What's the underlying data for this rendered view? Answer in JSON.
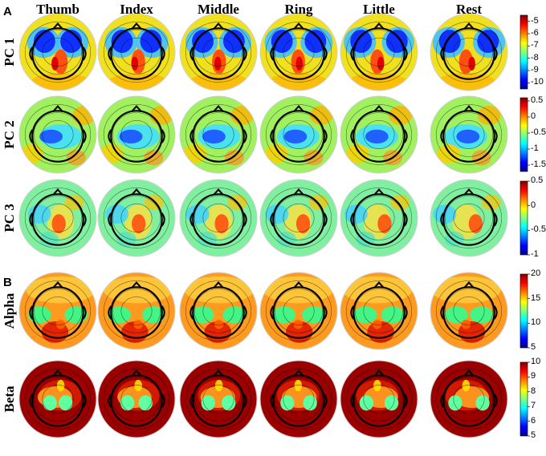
{
  "panels": [
    {
      "letter": "A"
    },
    {
      "letter": "B"
    }
  ],
  "columns": [
    "Thumb",
    "Index",
    "Middle",
    "Ring",
    "Little",
    "Rest"
  ],
  "rows": [
    {
      "label": "PC 1",
      "style": "pc1",
      "colorbar": {
        "min": -10.5,
        "max": -4.5,
        "ticks": [
          "-5",
          "-6",
          "-7",
          "-8",
          "-9",
          "-10"
        ],
        "tick_values": [
          -5,
          -6,
          -7,
          -8,
          -9,
          -10
        ]
      }
    },
    {
      "label": "PC 2",
      "style": "pc2",
      "colorbar": {
        "min": -1.7,
        "max": 0.6,
        "ticks": [
          "0.5",
          "0",
          "-0.5",
          "-1",
          "-1.5"
        ],
        "tick_values": [
          0.5,
          0,
          -0.5,
          -1,
          -1.5
        ]
      }
    },
    {
      "label": "PC 3",
      "style": "pc3",
      "colorbar": {
        "min": -1.0,
        "max": 0.5,
        "ticks": [
          "0.5",
          "0",
          "-0.5",
          "-1"
        ],
        "tick_values": [
          0.5,
          0,
          -0.5,
          -1
        ]
      }
    },
    {
      "label": "Alpha",
      "style": "alpha",
      "colorbar": {
        "min": 5,
        "max": 20,
        "ticks": [
          "20",
          "15",
          "10",
          "5"
        ],
        "tick_values": [
          20,
          15,
          10,
          5
        ]
      }
    },
    {
      "label": "Beta",
      "style": "beta",
      "colorbar": {
        "min": 5,
        "max": 10,
        "ticks": [
          "10",
          "9",
          "8",
          "7",
          "6",
          "5"
        ],
        "tick_values": [
          10,
          9,
          8,
          7,
          6,
          5
        ]
      }
    }
  ],
  "colors": {
    "jet": [
      "#00008f",
      "#0000ff",
      "#0080ff",
      "#00ffff",
      "#80ff80",
      "#ffff00",
      "#ff8000",
      "#ff0000",
      "#800000"
    ]
  }
}
